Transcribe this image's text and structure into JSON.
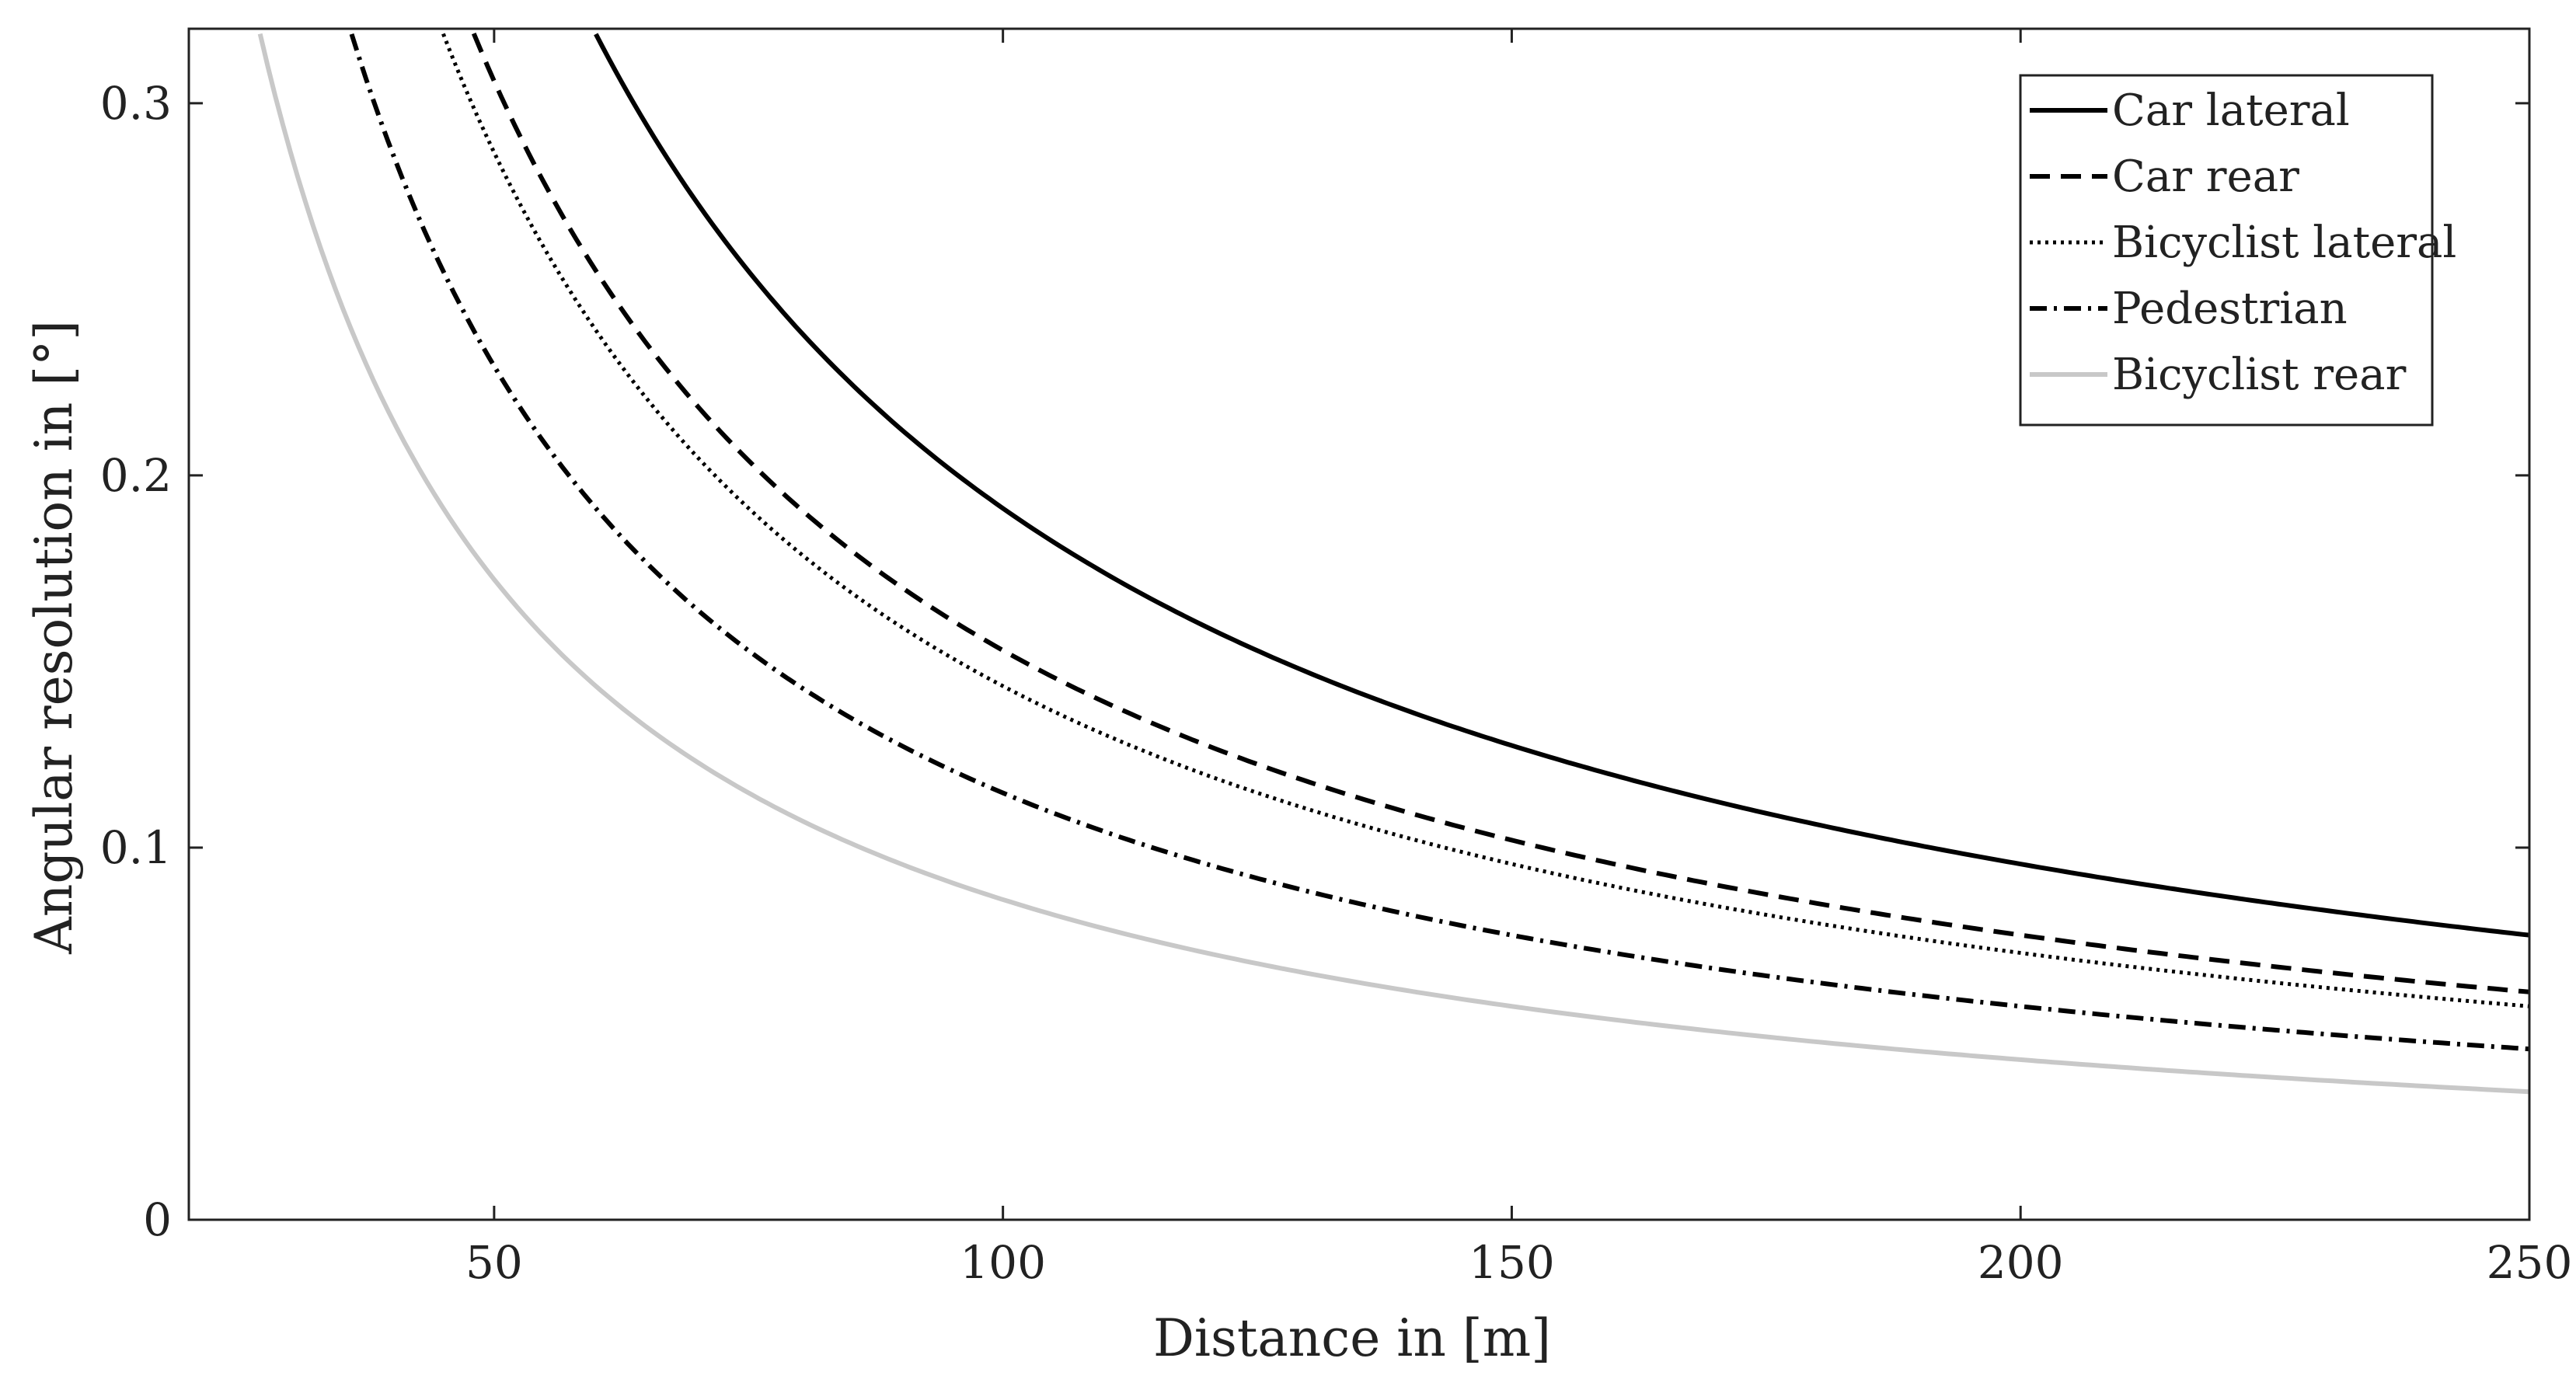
{
  "chart_data": {
    "type": "line",
    "title": "",
    "xlabel": "Distance in [m]",
    "ylabel": "Angular resolution in [°]",
    "xlim": [
      20,
      250
    ],
    "ylim": [
      0,
      0.32
    ],
    "xticks": [
      50,
      100,
      150,
      200,
      250
    ],
    "yticks": [
      0,
      0.1,
      0.2,
      0.3
    ],
    "xtick_labels": [
      "50",
      "100",
      "150",
      "200",
      "250"
    ],
    "ytick_labels": [
      "0",
      "0.1",
      "0.2",
      "0.3"
    ],
    "grid": false,
    "box": true,
    "legend_position": "top-right",
    "series": [
      {
        "name": "Car lateral",
        "style": "solid",
        "color": "#000000",
        "x": [
          60,
          70,
          80,
          90,
          100,
          125,
          150,
          175,
          200,
          225,
          250
        ],
        "y": [
          0.319,
          0.273,
          0.239,
          0.212,
          0.191,
          0.153,
          0.127,
          0.109,
          0.096,
          0.085,
          0.0765
        ]
      },
      {
        "name": "Car rear",
        "style": "dashed",
        "color": "#000000",
        "x": [
          48,
          50,
          60,
          70,
          80,
          100,
          125,
          150,
          175,
          200,
          225,
          250
        ],
        "y": [
          0.319,
          0.306,
          0.255,
          0.219,
          0.191,
          0.153,
          0.122,
          0.102,
          0.0875,
          0.0765,
          0.068,
          0.0612
        ]
      },
      {
        "name": "Bicyclist lateral",
        "style": "dotted",
        "color": "#000000",
        "x": [
          45,
          50,
          60,
          70,
          80,
          100,
          125,
          150,
          175,
          200,
          225,
          250
        ],
        "y": [
          0.319,
          0.287,
          0.239,
          0.205,
          0.179,
          0.143,
          0.115,
          0.0955,
          0.082,
          0.0717,
          0.0637,
          0.0573
        ]
      },
      {
        "name": "Pedestrian",
        "style": "dashdot",
        "color": "#000000",
        "x": [
          36,
          40,
          50,
          60,
          70,
          80,
          100,
          125,
          150,
          175,
          200,
          225,
          250
        ],
        "y": [
          0.319,
          0.287,
          0.229,
          0.191,
          0.164,
          0.143,
          0.115,
          0.0917,
          0.0764,
          0.0655,
          0.0573,
          0.051,
          0.0459
        ]
      },
      {
        "name": "Bicyclist rear",
        "style": "solid",
        "color": "#c8c8c8",
        "x": [
          27,
          30,
          40,
          50,
          60,
          70,
          80,
          100,
          125,
          150,
          175,
          200,
          225,
          250
        ],
        "y": [
          0.319,
          0.287,
          0.215,
          0.172,
          0.143,
          0.123,
          0.108,
          0.086,
          0.0688,
          0.0573,
          0.0491,
          0.043,
          0.0382,
          0.0344
        ]
      }
    ]
  }
}
